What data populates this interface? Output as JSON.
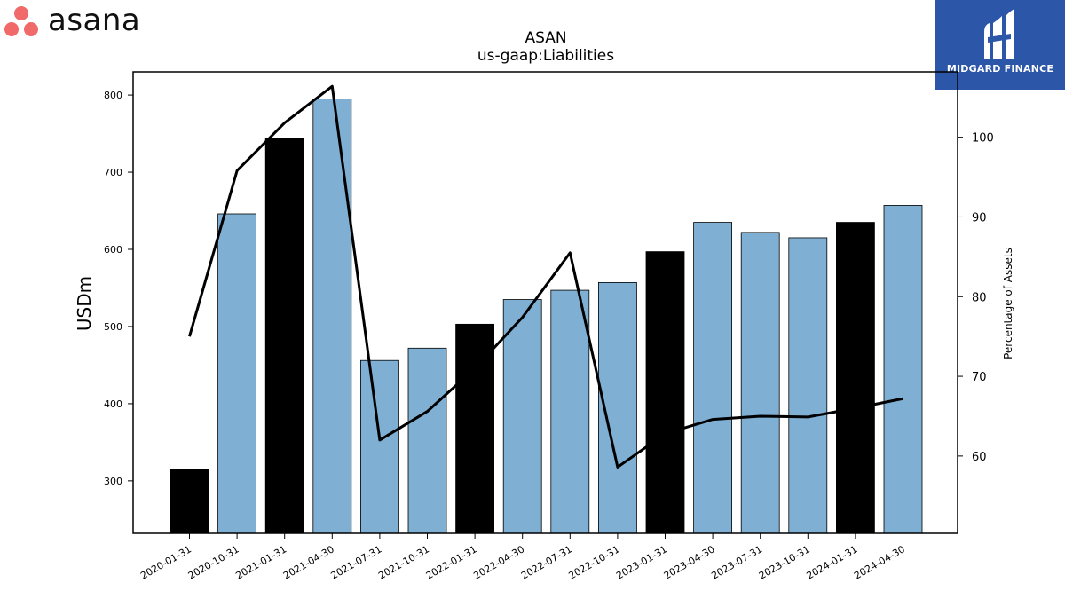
{
  "logos": {
    "left": "asana",
    "right": "MIDGARD FINANCE"
  },
  "chart_data": {
    "type": "bar",
    "title": "ASAN",
    "subtitle": "us-gaap:Liabilities",
    "ylabel": "USDm",
    "y2label": "Percentage of Assets",
    "ylim": [
      232,
      830
    ],
    "y2lim": [
      50.3,
      108.2
    ],
    "yticks": [
      300,
      400,
      500,
      600,
      700,
      800
    ],
    "y2ticks": [
      60,
      70,
      80,
      90,
      100
    ],
    "categories": [
      "2020-01-31",
      "2020-10-31",
      "2021-01-31",
      "2021-04-30",
      "2021-07-31",
      "2021-10-31",
      "2022-01-31",
      "2022-04-30",
      "2022-07-31",
      "2022-10-31",
      "2023-01-31",
      "2023-04-30",
      "2023-07-31",
      "2023-10-31",
      "2024-01-31",
      "2024-04-30"
    ],
    "series": [
      {
        "type": "bar",
        "values": [
          315,
          646,
          744,
          795,
          456,
          472,
          503,
          535,
          547,
          557,
          597,
          635,
          622,
          615,
          635,
          657
        ],
        "colors": [
          "#000000",
          "#7fb0d3",
          "#000000",
          "#7fb0d3",
          "#7fb0d3",
          "#7fb0d3",
          "#000000",
          "#7fb0d3",
          "#7fb0d3",
          "#7fb0d3",
          "#000000",
          "#7fb0d3",
          "#7fb0d3",
          "#7fb0d3",
          "#000000",
          "#7fb0d3"
        ]
      },
      {
        "type": "line",
        "axis": "right",
        "color": "#000000",
        "values": [
          75.0,
          95.8,
          101.8,
          106.4,
          62.0,
          65.6,
          71.0,
          77.4,
          85.5,
          58.6,
          62.8,
          64.6,
          65.0,
          64.9,
          66.0,
          67.2
        ]
      }
    ],
    "grid": false
  }
}
